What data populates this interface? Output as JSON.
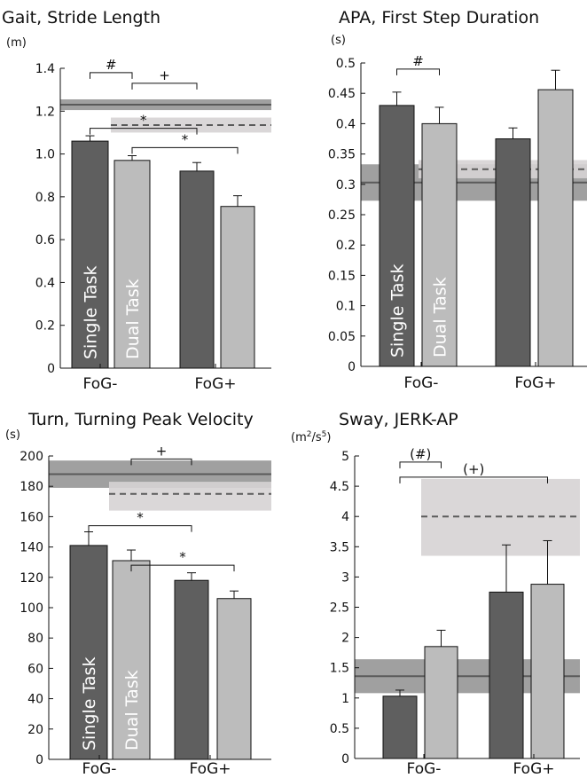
{
  "colors": {
    "dark_bar": "#5f5f5f",
    "light_bar": "#bcbcbc",
    "ref_band_dark": "#8f8f8f",
    "ref_band_light": "#d6d3d4",
    "ref_line": "#5a5a5a",
    "axis": "#111111"
  },
  "chart_data": [
    {
      "type": "bar",
      "title": "Gait, Stride Length",
      "ylabel": "(m)",
      "ylim": [
        0,
        1.4
      ],
      "yticks": [
        "0",
        "0.2",
        "0.4",
        "0.6",
        "0.8",
        "1.0",
        "1.2",
        "1.4"
      ],
      "categories": [
        "FoG-",
        "FoG+"
      ],
      "bar_text": [
        "Single Task",
        "Dual Task"
      ],
      "series": [
        {
          "values": [
            1.06,
            0.92
          ],
          "errors": [
            0.025,
            0.04
          ]
        },
        {
          "values": [
            0.97,
            0.755
          ],
          "errors": [
            0.022,
            0.05
          ]
        }
      ],
      "reference": [
        {
          "style": "solid",
          "value": 1.23,
          "band": [
            1.205,
            1.255
          ],
          "span": "full"
        },
        {
          "style": "dashed",
          "value": 1.135,
          "band": [
            1.1,
            1.17
          ],
          "span": "from-dual-fog-minus"
        }
      ],
      "brackets": [
        {
          "label": "#",
          "from": [
            0,
            0
          ],
          "to": [
            1,
            0
          ],
          "y": 1.38
        },
        {
          "label": "+",
          "from": [
            0,
            1
          ],
          "to": [
            1,
            0
          ],
          "y": 1.33
        },
        {
          "label": "*",
          "from": [
            0,
            0
          ],
          "to": [
            0,
            1
          ],
          "y": 1.12
        },
        {
          "label": "*",
          "from": [
            1,
            0
          ],
          "to": [
            1,
            1
          ],
          "y": 1.03
        }
      ]
    },
    {
      "type": "bar",
      "title": "APA, First Step Duration",
      "ylabel": "(s)",
      "ylim": [
        0,
        0.5
      ],
      "yticks": [
        "0",
        "0.05",
        "0.1",
        "0.15",
        "0.2",
        "0.25",
        "0.3",
        "0.35",
        "0.4",
        "0.45",
        "0.5"
      ],
      "categories": [
        "FoG-",
        "FoG+"
      ],
      "bar_text": [
        "Single Task",
        "Dual Task"
      ],
      "series": [
        {
          "values": [
            0.43,
            0.375
          ],
          "errors": [
            0.022,
            0.018
          ]
        },
        {
          "values": [
            0.4,
            0.456
          ],
          "errors": [
            0.027,
            0.032
          ]
        }
      ],
      "reference": [
        {
          "style": "solid",
          "value": 0.303,
          "band": [
            0.273,
            0.333
          ],
          "span": "full"
        },
        {
          "style": "dashed",
          "value": 0.325,
          "band": [
            0.31,
            0.34
          ],
          "span": "from-dual-fog-minus"
        }
      ],
      "brackets": [
        {
          "label": "#",
          "from": [
            0,
            0
          ],
          "to": [
            1,
            0
          ],
          "y": 0.49
        }
      ]
    },
    {
      "type": "bar",
      "title": "Turn, Turning Peak Velocity",
      "ylabel": "(s)",
      "ylim": [
        0,
        200
      ],
      "yticks": [
        "0",
        "20",
        "40",
        "60",
        "80",
        "100",
        "120",
        "140",
        "160",
        "180",
        "200"
      ],
      "categories": [
        "FoG-",
        "FoG+"
      ],
      "bar_text": [
        "Single Task",
        "Dual Task"
      ],
      "series": [
        {
          "values": [
            141,
            118
          ],
          "errors": [
            9,
            5
          ]
        },
        {
          "values": [
            131,
            106
          ],
          "errors": [
            7,
            5
          ]
        }
      ],
      "reference": [
        {
          "style": "solid",
          "value": 188,
          "band": [
            179,
            197
          ],
          "span": "full"
        },
        {
          "style": "dashed",
          "value": 175,
          "band": [
            164,
            183
          ],
          "span": "from-dual-fog-minus"
        }
      ],
      "brackets": [
        {
          "label": "+",
          "from": [
            0,
            1
          ],
          "to": [
            1,
            0
          ],
          "y": 198
        },
        {
          "label": "*",
          "from": [
            0,
            0
          ],
          "to": [
            0,
            1
          ],
          "y": 154
        },
        {
          "label": "*",
          "from": [
            1,
            0
          ],
          "to": [
            1,
            1
          ],
          "y": 128
        }
      ]
    },
    {
      "type": "bar",
      "title": "Sway, JERK-AP",
      "ylabel": "(m2/s5)",
      "ylim": [
        0,
        5
      ],
      "yticks": [
        "0",
        "0.5",
        "1",
        "1.5",
        "2",
        "2.5",
        "3",
        "3.5",
        "4",
        "4.5",
        "5"
      ],
      "categories": [
        "FoG-",
        "FoG+"
      ],
      "bar_text": [
        "",
        ""
      ],
      "series": [
        {
          "values": [
            1.03,
            2.75
          ],
          "errors": [
            0.1,
            0.78
          ]
        },
        {
          "values": [
            1.85,
            2.88
          ],
          "errors": [
            0.27,
            0.72
          ]
        }
      ],
      "reference": [
        {
          "style": "solid",
          "value": 1.36,
          "band": [
            1.08,
            1.64
          ],
          "span": "full"
        },
        {
          "style": "dashed",
          "value": 4.0,
          "band": [
            3.35,
            4.62
          ],
          "span": "from-dual-fog-minus"
        }
      ],
      "brackets": [
        {
          "label": "(#)",
          "from": [
            0,
            0
          ],
          "to": [
            1,
            0
          ],
          "y": 4.9
        },
        {
          "label": "(+)",
          "from": [
            0,
            0
          ],
          "to": [
            1,
            1
          ],
          "y": 4.65
        }
      ]
    }
  ]
}
